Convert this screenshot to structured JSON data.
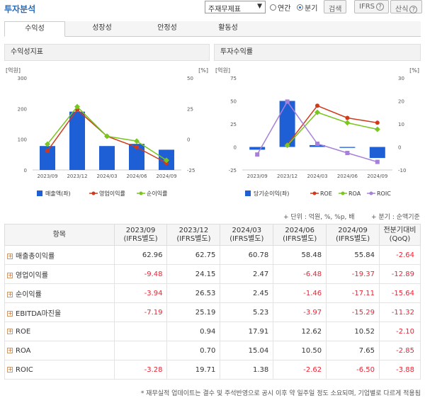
{
  "header": {
    "title": "투자분석",
    "select_value": "주재무제표",
    "radio_annual": "연간",
    "radio_quarter": "분기",
    "search_label": "검색",
    "ifrs_label": "IFRS",
    "formula_label": "산식"
  },
  "tabs": [
    "수익성",
    "성장성",
    "안정성",
    "활동성"
  ],
  "left_panel": {
    "title": "수익성지표",
    "unit_left": "[억원]",
    "unit_right": "[%]"
  },
  "right_panel": {
    "title": "투자수익률",
    "unit_left": "[억원]",
    "unit_right": "[%]"
  },
  "chart_data": [
    {
      "type": "bar+line",
      "title": "수익성지표",
      "categories": [
        "2023/09",
        "2023/12",
        "2024/03",
        "2024/06",
        "2024/09"
      ],
      "left_axis": {
        "label": "[억원]",
        "ylim": [
          0,
          300
        ],
        "ticks": [
          0,
          100,
          200,
          300
        ]
      },
      "right_axis": {
        "label": "[%]",
        "ylim": [
          -25,
          50
        ],
        "ticks": [
          -25,
          0,
          25,
          50
        ]
      },
      "series": [
        {
          "name": "매출액(좌)",
          "kind": "bar",
          "axis": "left",
          "color": "#1f5fd6",
          "values": [
            78,
            190,
            78,
            85,
            66
          ]
        },
        {
          "name": "영업이익률",
          "kind": "line",
          "axis": "right",
          "color": "#d03a1b",
          "values": [
            -9.48,
            24.15,
            2.47,
            -6.48,
            -19.37
          ]
        },
        {
          "name": "순이익률",
          "kind": "line",
          "axis": "right",
          "color": "#7ac620",
          "values": [
            -3.94,
            26.53,
            2.45,
            -1.46,
            -17.11
          ]
        }
      ]
    },
    {
      "type": "bar+line",
      "title": "투자수익률",
      "categories": [
        "2023/09",
        "2023/12",
        "2024/03",
        "2024/06",
        "2024/09"
      ],
      "left_axis": {
        "label": "[억원]",
        "ylim": [
          -25,
          75
        ],
        "ticks": [
          -25,
          0,
          25,
          50,
          75
        ]
      },
      "right_axis": {
        "label": "[%]",
        "ylim": [
          -10,
          30
        ],
        "ticks": [
          -10,
          0,
          10,
          20,
          30
        ]
      },
      "series": [
        {
          "name": "당기순이익(좌)",
          "kind": "bar",
          "axis": "left",
          "color": "#1f5fd6",
          "values": [
            -3,
            50,
            2,
            -1,
            -12
          ]
        },
        {
          "name": "ROE",
          "kind": "line",
          "axis": "right",
          "color": "#d03a1b",
          "values": [
            null,
            0.94,
            17.91,
            12.62,
            10.52
          ]
        },
        {
          "name": "ROA",
          "kind": "line",
          "axis": "right",
          "color": "#7ac620",
          "values": [
            null,
            0.7,
            15.04,
            10.5,
            7.65
          ]
        },
        {
          "name": "ROIC",
          "kind": "line",
          "axis": "right",
          "color": "#a780d9",
          "values": [
            -3.28,
            19.71,
            1.38,
            -2.62,
            -6.5
          ]
        }
      ]
    }
  ],
  "notes": {
    "unit": "+ 단위 : 억원, %, %p, 배",
    "basis": "+ 분기 : 순액기준"
  },
  "table": {
    "col_item": "항목",
    "columns": [
      {
        "period": "2023/09",
        "basis": "(IFRS별도)"
      },
      {
        "period": "2023/12",
        "basis": "(IFRS별도)"
      },
      {
        "period": "2024/03",
        "basis": "(IFRS별도)"
      },
      {
        "period": "2024/06",
        "basis": "(IFRS별도)"
      },
      {
        "period": "2024/09",
        "basis": "(IFRS별도)"
      }
    ],
    "col_qoq": "전분기대비",
    "col_qoq_sub": "(QoQ)",
    "rows": [
      {
        "name": "매출총이익률",
        "values": [
          "62.96",
          "62.75",
          "60.78",
          "58.48",
          "55.84"
        ],
        "qoq": "-2.64"
      },
      {
        "name": "영업이익률",
        "values": [
          "-9.48",
          "24.15",
          "2.47",
          "-6.48",
          "-19.37"
        ],
        "qoq": "-12.89"
      },
      {
        "name": "순이익률",
        "values": [
          "-3.94",
          "26.53",
          "2.45",
          "-1.46",
          "-17.11"
        ],
        "qoq": "-15.64"
      },
      {
        "name": "EBITDA마진율",
        "values": [
          "-7.19",
          "25.19",
          "5.23",
          "-3.97",
          "-15.29"
        ],
        "qoq": "-11.32"
      },
      {
        "name": "ROE",
        "values": [
          "",
          "0.94",
          "17.91",
          "12.62",
          "10.52"
        ],
        "qoq": "-2.10"
      },
      {
        "name": "ROA",
        "values": [
          "",
          "0.70",
          "15.04",
          "10.50",
          "7.65"
        ],
        "qoq": "-2.85"
      },
      {
        "name": "ROIC",
        "values": [
          "-3.28",
          "19.71",
          "1.38",
          "-2.62",
          "-6.50"
        ],
        "qoq": "-3.88"
      }
    ]
  },
  "footnote": "* 재무실적 업데이트는 결수 및 주석반영으로 공시 이후 약 일주일 정도 소요되며, 기업별로 다르게 적용됨"
}
